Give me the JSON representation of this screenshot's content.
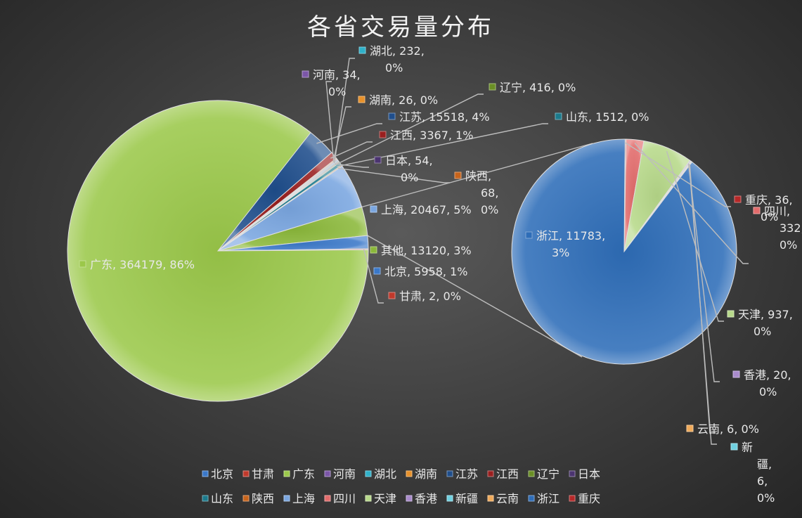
{
  "chart_data": {
    "type": "pie",
    "subtype": "pie-of-pie",
    "title": "各省交易量分布",
    "slices": [
      {
        "name": "北京",
        "value": 5958,
        "label": "北京, 5958, 1%",
        "color": "#3a78c9"
      },
      {
        "name": "甘肃",
        "value": 2,
        "label": "甘肃, 2, 0%",
        "color": "#c0392b"
      },
      {
        "name": "广东",
        "value": 364179,
        "label": "广东, 364179, 86%",
        "color": "#9bc84a"
      },
      {
        "name": "河南",
        "value": 34,
        "label": "河南, 34, 0%",
        "color": "#7b56a8"
      },
      {
        "name": "湖北",
        "value": 232,
        "label": "湖北, 232, 0%",
        "color": "#2fb1c9"
      },
      {
        "name": "湖南",
        "value": 26,
        "label": "湖南, 26, 0%",
        "color": "#e8912a"
      },
      {
        "name": "江苏",
        "value": 15518,
        "label": "江苏, 15518, 4%",
        "color": "#1f4e8c"
      },
      {
        "name": "江西",
        "value": 3367,
        "label": "江西, 3367, 1%",
        "color": "#9a1f1f"
      },
      {
        "name": "辽宁",
        "value": 416,
        "label": "辽宁, 416, 0%",
        "color": "#6a8f25"
      },
      {
        "name": "日本",
        "value": 54,
        "label": "日本, 54, 0%",
        "color": "#4b3470"
      },
      {
        "name": "山东",
        "value": 1512,
        "label": "山东, 1512, 0%",
        "color": "#1b7a8c"
      },
      {
        "name": "陕西",
        "value": 68,
        "label": "陕西, 68, 0%",
        "color": "#c8641b"
      },
      {
        "name": "上海",
        "value": 20467,
        "label": "上海, 20467, 5%",
        "color": "#7aa6e0"
      },
      {
        "name": "四川",
        "value": 332,
        "label": "四川, 332, 0%",
        "color": "#e36b6b"
      },
      {
        "name": "天津",
        "value": 937,
        "label": "天津, 937, 0%",
        "color": "#b7d98a"
      },
      {
        "name": "香港",
        "value": 20,
        "label": "香港, 20, 0%",
        "color": "#a98bcc"
      },
      {
        "name": "新疆",
        "value": 6,
        "label": "新疆, 6, 0%",
        "color": "#6fd0e0"
      },
      {
        "name": "云南",
        "value": 6,
        "label": "云南, 6, 0%",
        "color": "#f0aa5a"
      },
      {
        "name": "浙江",
        "value": 11783,
        "label": "浙江, 11783, 3%",
        "color": "#2e6db8"
      },
      {
        "name": "重庆",
        "value": 36,
        "label": "重庆, 36, 0%",
        "color": "#b62828"
      }
    ],
    "other": {
      "name": "其他",
      "value": 13120,
      "label": "其他, 13120, 3%",
      "color": "#8bb83a"
    },
    "primary_order": [
      "江苏",
      "江西",
      "湖南",
      "河南",
      "湖北",
      "日本",
      "辽宁",
      "山东",
      "陕西",
      "上海",
      "其他",
      "北京",
      "甘肃",
      "广东"
    ],
    "secondary_order": [
      "重庆",
      "四川",
      "天津",
      "香港",
      "新疆",
      "云南",
      "浙江"
    ],
    "legend": {
      "position": "bottom",
      "rows": [
        [
          "北京",
          "甘肃",
          "广东",
          "河南",
          "湖北",
          "湖南",
          "江苏",
          "江西",
          "辽宁",
          "日本"
        ],
        [
          "山东",
          "陕西",
          "上海",
          "四川",
          "天津",
          "香港",
          "新疆",
          "云南",
          "浙江",
          "重庆"
        ]
      ]
    }
  }
}
